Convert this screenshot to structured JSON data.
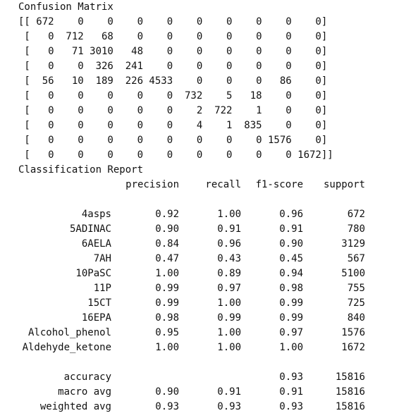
{
  "confusion_matrix": {
    "title": "Confusion Matrix",
    "rows": [
      "[[ 672    0    0    0    0    0    0    0    0    0]",
      " [   0  712   68    0    0    0    0    0    0    0]",
      " [   0   71 3010   48    0    0    0    0    0    0]",
      " [   0    0  326  241    0    0    0    0    0    0]",
      " [  56   10  189  226 4533    0    0    0   86    0]",
      " [   0    0    0    0    0  732    5   18    0    0]",
      " [   0    0    0    0    0    2  722    1    0    0]",
      " [   0    0    0    0    0    4    1  835    0    0]",
      " [   0    0    0    0    0    0    0    0 1576    0]",
      " [   0    0    0    0    0    0    0    0    0 1672]]"
    ]
  },
  "classification_report": {
    "title": "Classification Report",
    "headers": {
      "precision": "precision",
      "recall": "recall",
      "f1": "f1-score",
      "support": "support"
    },
    "rows": [
      {
        "label": "4asps",
        "precision": "0.92",
        "recall": "1.00",
        "f1": "0.96",
        "support": "672"
      },
      {
        "label": "5ADINAC",
        "precision": "0.90",
        "recall": "0.91",
        "f1": "0.91",
        "support": "780"
      },
      {
        "label": "6AELA",
        "precision": "0.84",
        "recall": "0.96",
        "f1": "0.90",
        "support": "3129"
      },
      {
        "label": "7AH",
        "precision": "0.47",
        "recall": "0.43",
        "f1": "0.45",
        "support": "567"
      },
      {
        "label": "10PaSC",
        "precision": "1.00",
        "recall": "0.89",
        "f1": "0.94",
        "support": "5100"
      },
      {
        "label": "11P",
        "precision": "0.99",
        "recall": "0.97",
        "f1": "0.98",
        "support": "755"
      },
      {
        "label": "15CT",
        "precision": "0.99",
        "recall": "1.00",
        "f1": "0.99",
        "support": "725"
      },
      {
        "label": "16EPA",
        "precision": "0.98",
        "recall": "0.99",
        "f1": "0.99",
        "support": "840"
      },
      {
        "label": "Alcohol_phenol",
        "precision": "0.95",
        "recall": "1.00",
        "f1": "0.97",
        "support": "1576"
      },
      {
        "label": "Aldehyde_ketone",
        "precision": "1.00",
        "recall": "1.00",
        "f1": "1.00",
        "support": "1672"
      }
    ],
    "summary": [
      {
        "label": "accuracy",
        "precision": "",
        "recall": "",
        "f1": "0.93",
        "support": "15816"
      },
      {
        "label": "macro avg",
        "precision": "0.90",
        "recall": "0.91",
        "f1": "0.91",
        "support": "15816"
      },
      {
        "label": "weighted avg",
        "precision": "0.93",
        "recall": "0.93",
        "f1": "0.93",
        "support": "15816"
      }
    ]
  }
}
